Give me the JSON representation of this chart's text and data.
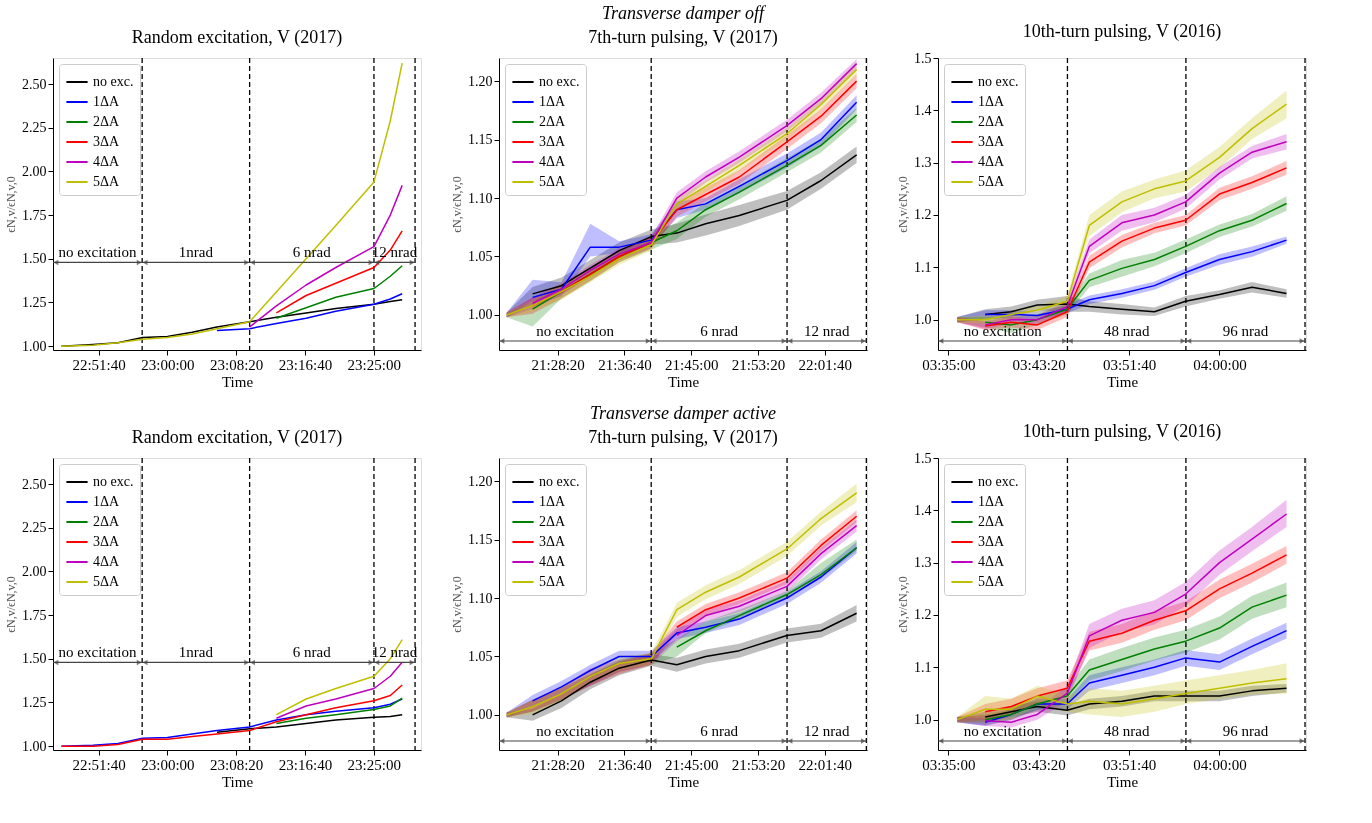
{
  "chart_data": [
    {
      "type": "line",
      "title": "Random excitation, V (2017)",
      "xlabel": "Time",
      "ylabel": "ϵN,v/ϵN,v,0",
      "legend": "top left",
      "x": [
        22.786,
        22.85,
        22.9,
        22.95,
        23.0,
        23.05,
        23.1,
        23.166,
        23.22,
        23.28,
        23.34,
        23.417,
        23.45,
        23.474
      ],
      "xlim": [
        22.769,
        23.512
      ],
      "ylim": [
        0.978,
        2.649
      ],
      "xticks": [
        {
          "value": 22.86111,
          "label": "22:51:40"
        },
        {
          "value": 23.0,
          "label": "23:00:00"
        },
        {
          "value": 23.13889,
          "label": "23:08:20"
        },
        {
          "value": 23.27778,
          "label": "23:16:40"
        },
        {
          "value": 23.41667,
          "label": "23:25:00"
        }
      ],
      "yticks": [
        {
          "value": 1.0,
          "label": "1.00"
        },
        {
          "value": 1.25,
          "label": "1.25"
        },
        {
          "value": 1.5,
          "label": "1.50"
        },
        {
          "value": 1.75,
          "label": "1.75"
        },
        {
          "value": 2.0,
          "label": "2.00"
        },
        {
          "value": 2.25,
          "label": "2.25"
        },
        {
          "value": 2.5,
          "label": "2.50"
        }
      ],
      "ref_lines": [
        {
          "axis": "x",
          "value": 22.949,
          "line_style": "dashed",
          "color": "#000000"
        },
        {
          "axis": "x",
          "value": 23.166,
          "line_style": "dashed",
          "color": "#000000"
        },
        {
          "axis": "x",
          "value": 23.417,
          "line_style": "dashed",
          "color": "#000000"
        },
        {
          "axis": "x",
          "value": 23.5,
          "line_style": "dashed",
          "color": "#000000"
        }
      ],
      "annotations": [
        "no excitation",
        "1nrad",
        "6 nrad",
        "12 nrad"
      ],
      "series": [
        {
          "name": "no exc.",
          "color": "#000000",
          "values": [
            1.0,
            1.01,
            1.02,
            1.05,
            1.055,
            1.08,
            1.11,
            1.14,
            1.165,
            1.19,
            1.215,
            1.24,
            1.255,
            1.265
          ]
        },
        {
          "name": "1ΔA",
          "color": "#0000ff",
          "values": [
            null,
            null,
            null,
            null,
            null,
            null,
            1.09,
            1.1,
            1.13,
            1.16,
            1.2,
            1.24,
            1.27,
            1.3
          ]
        },
        {
          "name": "2ΔA",
          "color": "#008000",
          "values": [
            null,
            null,
            null,
            null,
            null,
            null,
            null,
            null,
            1.16,
            1.22,
            1.28,
            1.33,
            1.4,
            1.46
          ]
        },
        {
          "name": "3ΔA",
          "color": "#ff0000",
          "values": [
            null,
            null,
            null,
            null,
            null,
            null,
            null,
            null,
            1.19,
            1.29,
            1.36,
            1.45,
            1.55,
            1.66
          ]
        },
        {
          "name": "4ΔA",
          "color": "#bf00bf",
          "values": [
            null,
            null,
            null,
            null,
            null,
            null,
            null,
            1.11,
            1.23,
            1.35,
            1.45,
            1.57,
            1.75,
            1.92
          ]
        },
        {
          "name": "5ΔA",
          "color": "#bfbf00",
          "values": [
            1.0,
            1.005,
            1.02,
            1.04,
            1.05,
            1.07,
            1.1,
            1.14,
            1.31,
            1.5,
            1.69,
            1.94,
            2.29,
            2.62
          ]
        }
      ]
    },
    {
      "type": "line",
      "title": "7th-turn pulsing, V (2017)",
      "subtitle": "Transverse damper off",
      "xlabel": "Time",
      "ylabel": "ϵN,v/ϵN,v,0",
      "legend": "top left",
      "annotations": [
        "no excitation",
        "6 nrad",
        "12 nrad"
      ],
      "x": [
        21.366,
        21.42,
        21.48,
        21.54,
        21.6,
        21.667,
        21.72,
        21.78,
        21.85,
        21.949,
        22.02,
        22.094
      ],
      "xlim": [
        21.3501,
        22.1156
      ],
      "ylim": [
        0.97,
        1.2198
      ],
      "xticks": [
        {
          "value": 21.47222,
          "label": "21:28:20"
        },
        {
          "value": 21.61111,
          "label": "21:36:40"
        },
        {
          "value": 21.75,
          "label": "21:45:00"
        },
        {
          "value": 21.88889,
          "label": "21:53:20"
        },
        {
          "value": 22.02778,
          "label": "22:01:40"
        }
      ],
      "yticks": [
        {
          "value": 1.0,
          "label": "1.00"
        },
        {
          "value": 1.05,
          "label": "1.05"
        },
        {
          "value": 1.1,
          "label": "1.10"
        },
        {
          "value": 1.15,
          "label": "1.15"
        },
        {
          "value": 1.2,
          "label": "1.20"
        }
      ],
      "ref_lines": [
        {
          "axis": "x",
          "value": 21.6667,
          "line_style": "dashed",
          "color": "#000000"
        },
        {
          "axis": "x",
          "value": 21.9493,
          "line_style": "dashed",
          "color": "#000000"
        },
        {
          "axis": "x",
          "value": 22.1142,
          "line_style": "dashed",
          "color": "#000000"
        }
      ],
      "series": [
        {
          "name": "no exc.",
          "color": "#000000",
          "values": [
            null,
            1.018,
            1.025,
            1.04,
            1.055,
            1.067,
            1.07,
            1.078,
            1.085,
            1.098,
            1.115,
            1.137
          ],
          "lower": [
            0.998,
            1.012,
            1.018,
            1.033,
            1.048,
            1.06,
            1.062,
            1.068,
            1.076,
            1.09,
            1.108,
            1.13
          ],
          "upper": [
            1.002,
            1.024,
            1.032,
            1.047,
            1.062,
            1.073,
            1.078,
            1.086,
            1.094,
            1.106,
            1.122,
            1.144
          ]
        },
        {
          "name": "1ΔA",
          "color": "#0000ff",
          "values": [
            null,
            1.015,
            1.022,
            1.058,
            1.058,
            1.064,
            1.09,
            1.095,
            1.11,
            1.132,
            1.15,
            1.182
          ],
          "lower": [
            0.998,
            1.008,
            1.016,
            1.05,
            1.053,
            1.059,
            1.083,
            1.09,
            1.104,
            1.126,
            1.144,
            1.176
          ],
          "upper": [
            1.002,
            1.03,
            1.028,
            1.078,
            1.063,
            1.069,
            1.097,
            1.1,
            1.116,
            1.138,
            1.156,
            1.188
          ]
        },
        {
          "name": "2ΔA",
          "color": "#008000",
          "values": [
            null,
            1.005,
            1.02,
            1.035,
            1.05,
            1.062,
            1.072,
            1.09,
            1.105,
            1.128,
            1.145,
            1.171
          ],
          "lower": [
            0.998,
            0.99,
            1.014,
            1.029,
            1.045,
            1.056,
            1.065,
            1.084,
            1.099,
            1.122,
            1.139,
            1.165
          ],
          "upper": [
            1.002,
            1.012,
            1.026,
            1.041,
            1.055,
            1.068,
            1.079,
            1.096,
            1.111,
            1.134,
            1.151,
            1.177
          ]
        },
        {
          "name": "3ΔA",
          "color": "#ff0000",
          "values": [
            null,
            1.008,
            1.02,
            1.035,
            1.05,
            1.062,
            1.09,
            1.103,
            1.118,
            1.148,
            1.17,
            1.2
          ],
          "lower": [
            0.998,
            1.001,
            1.014,
            1.029,
            1.045,
            1.057,
            1.084,
            1.097,
            1.112,
            1.142,
            1.164,
            1.194
          ],
          "upper": [
            1.002,
            1.015,
            1.026,
            1.041,
            1.055,
            1.067,
            1.096,
            1.109,
            1.124,
            1.154,
            1.176,
            1.206
          ]
        },
        {
          "name": "4ΔA",
          "color": "#bf00bf",
          "values": [
            null,
            1.01,
            1.022,
            1.038,
            1.052,
            1.062,
            1.1,
            1.118,
            1.135,
            1.162,
            1.185,
            1.215
          ],
          "lower": [
            0.998,
            1.005,
            1.017,
            1.033,
            1.047,
            1.057,
            1.095,
            1.113,
            1.13,
            1.157,
            1.18,
            1.21
          ],
          "upper": [
            1.002,
            1.015,
            1.027,
            1.043,
            1.057,
            1.067,
            1.105,
            1.123,
            1.14,
            1.167,
            1.19,
            1.219
          ]
        },
        {
          "name": "5ΔA",
          "color": "#bfbf00",
          "values": [
            1.0,
            1.008,
            1.02,
            1.033,
            1.048,
            1.06,
            1.095,
            1.11,
            1.128,
            1.155,
            1.18,
            1.21
          ],
          "lower": [
            0.998,
            1.003,
            1.013,
            1.028,
            1.043,
            1.055,
            1.09,
            1.105,
            1.123,
            1.15,
            1.175,
            1.205
          ],
          "upper": [
            1.002,
            1.013,
            1.027,
            1.038,
            1.053,
            1.065,
            1.1,
            1.115,
            1.133,
            1.16,
            1.185,
            1.215
          ]
        }
      ]
    },
    {
      "type": "line",
      "title": "10th-turn pulsing, V (2016)",
      "xlabel": "Time",
      "ylabel": "ϵN,v/ϵN,v,0",
      "legend": "top left",
      "x": [
        3.597,
        3.64,
        3.68,
        3.72,
        3.766,
        3.8,
        3.85,
        3.9,
        3.948,
        4.0,
        4.05,
        4.103
      ],
      "xlim": [
        3.5675,
        4.1329
      ],
      "ylim": [
        0.942,
        1.5
      ],
      "xticks": [
        {
          "value": 3.58333,
          "label": "03:35:00"
        },
        {
          "value": 3.72222,
          "label": "03:43:20"
        },
        {
          "value": 3.86111,
          "label": "03:51:40"
        },
        {
          "value": 4.0,
          "label": "04:00:00"
        }
      ],
      "yticks": [
        {
          "value": 1.0,
          "label": "1.0"
        },
        {
          "value": 1.1,
          "label": "1.1"
        },
        {
          "value": 1.2,
          "label": "1.2"
        },
        {
          "value": 1.3,
          "label": "1.3"
        },
        {
          "value": 1.4,
          "label": "1.4"
        },
        {
          "value": 1.5,
          "label": "1.5"
        }
      ],
      "ref_lines": [
        {
          "axis": "x",
          "value": 3.7664,
          "line_style": "dashed",
          "color": "#000000"
        },
        {
          "axis": "x",
          "value": 3.9484,
          "line_style": "dashed",
          "color": "#000000"
        },
        {
          "axis": "x",
          "value": 4.1314,
          "line_style": "dashed",
          "color": "#000000"
        }
      ],
      "annotations": [
        "no excitation",
        "48 nrad",
        "96 nrad"
      ],
      "series": [
        {
          "name": "no exc.",
          "color": "#000000",
          "values": [
            null,
            1.01,
            1.015,
            1.028,
            1.03,
            1.025,
            1.02,
            1.015,
            1.035,
            1.048,
            1.062,
            1.05
          ],
          "lower": [
            0.995,
            1.0,
            1.005,
            1.018,
            1.015,
            1.015,
            1.01,
            1.007,
            1.025,
            1.04,
            1.052,
            1.042
          ],
          "upper": [
            1.005,
            1.02,
            1.025,
            1.038,
            1.045,
            1.035,
            1.03,
            1.023,
            1.045,
            1.056,
            1.072,
            1.058
          ]
        },
        {
          "name": "1ΔA",
          "color": "#0000ff",
          "values": [
            null,
            1.01,
            1.01,
            1.008,
            1.02,
            1.038,
            1.05,
            1.065,
            1.09,
            1.115,
            1.13,
            1.152
          ],
          "lower": [
            0.995,
            1.002,
            1.002,
            1.0,
            1.012,
            1.03,
            1.042,
            1.057,
            1.082,
            1.105,
            1.12,
            1.145
          ],
          "upper": [
            1.005,
            1.018,
            1.018,
            1.016,
            1.028,
            1.046,
            1.058,
            1.073,
            1.098,
            1.125,
            1.14,
            1.159
          ]
        },
        {
          "name": "2ΔA",
          "color": "#008000",
          "values": [
            null,
            0.995,
            0.99,
            1.0,
            1.02,
            1.075,
            1.098,
            1.115,
            1.14,
            1.17,
            1.19,
            1.222
          ],
          "lower": [
            0.995,
            0.985,
            0.975,
            0.99,
            1.01,
            1.062,
            1.082,
            1.102,
            1.127,
            1.158,
            1.178,
            1.208
          ],
          "upper": [
            1.005,
            1.005,
            1.005,
            1.01,
            1.03,
            1.088,
            1.114,
            1.128,
            1.153,
            1.182,
            1.202,
            1.236
          ]
        },
        {
          "name": "3ΔA",
          "color": "#ff0000",
          "values": [
            null,
            0.988,
            0.995,
            0.99,
            1.015,
            1.11,
            1.15,
            1.175,
            1.19,
            1.24,
            1.262,
            1.29
          ],
          "lower": [
            0.995,
            0.98,
            0.985,
            0.98,
            1.005,
            1.098,
            1.138,
            1.165,
            1.18,
            1.228,
            1.25,
            1.277
          ],
          "upper": [
            1.005,
            0.996,
            1.005,
            1.0,
            1.025,
            1.122,
            1.162,
            1.185,
            1.2,
            1.252,
            1.274,
            1.303
          ]
        },
        {
          "name": "4ΔA",
          "color": "#bf00bf",
          "values": [
            null,
            0.99,
            1.0,
            1.0,
            1.025,
            1.14,
            1.185,
            1.2,
            1.225,
            1.28,
            1.32,
            1.34
          ],
          "lower": [
            0.995,
            0.982,
            0.992,
            0.992,
            1.015,
            1.127,
            1.17,
            1.186,
            1.212,
            1.268,
            1.308,
            1.325
          ],
          "upper": [
            1.005,
            0.998,
            1.008,
            1.008,
            1.035,
            1.153,
            1.2,
            1.214,
            1.238,
            1.292,
            1.332,
            1.355
          ]
        },
        {
          "name": "5ΔA",
          "color": "#bfbf00",
          "values": [
            1.0,
            1.0,
            1.01,
            1.018,
            1.035,
            1.18,
            1.225,
            1.25,
            1.265,
            1.31,
            1.365,
            1.412
          ],
          "lower": [
            0.995,
            0.992,
            1.002,
            1.01,
            1.025,
            1.16,
            1.205,
            1.232,
            1.245,
            1.29,
            1.345,
            1.385
          ],
          "upper": [
            1.005,
            1.008,
            1.018,
            1.026,
            1.045,
            1.2,
            1.245,
            1.268,
            1.285,
            1.33,
            1.385,
            1.438
          ]
        }
      ]
    },
    {
      "type": "line",
      "title": "Random excitation, V (2017)",
      "xlabel": "Time",
      "ylabel": "ϵN,v/ϵN,v,0",
      "legend": "top left",
      "x": [
        22.786,
        22.85,
        22.9,
        22.95,
        23.0,
        23.05,
        23.1,
        23.166,
        23.22,
        23.28,
        23.34,
        23.417,
        23.45,
        23.474
      ],
      "xlim": [
        22.769,
        23.512
      ],
      "ylim": [
        0.978,
        2.649
      ],
      "xticks": [
        {
          "value": 22.86111,
          "label": "22:51:40"
        },
        {
          "value": 23.0,
          "label": "23:00:00"
        },
        {
          "value": 23.13889,
          "label": "23:08:20"
        },
        {
          "value": 23.27778,
          "label": "23:16:40"
        },
        {
          "value": 23.41667,
          "label": "23:25:00"
        }
      ],
      "yticks": [
        {
          "value": 1.0,
          "label": "1.00"
        },
        {
          "value": 1.25,
          "label": "1.25"
        },
        {
          "value": 1.5,
          "label": "1.50"
        },
        {
          "value": 1.75,
          "label": "1.75"
        },
        {
          "value": 2.0,
          "label": "2.00"
        },
        {
          "value": 2.25,
          "label": "2.25"
        },
        {
          "value": 2.5,
          "label": "2.50"
        }
      ],
      "ref_lines": [
        {
          "axis": "x",
          "value": 22.949,
          "line_style": "dashed",
          "color": "#000000"
        },
        {
          "axis": "x",
          "value": 23.166,
          "line_style": "dashed",
          "color": "#000000"
        },
        {
          "axis": "x",
          "value": 23.417,
          "line_style": "dashed",
          "color": "#000000"
        },
        {
          "axis": "x",
          "value": 23.5,
          "line_style": "dashed",
          "color": "#000000"
        }
      ],
      "annotations": [
        "no excitation",
        "1nrad",
        "6 nrad",
        "12 nrad"
      ],
      "series": [
        {
          "name": "no exc.",
          "color": "#000000",
          "values": [
            null,
            null,
            null,
            null,
            null,
            null,
            1.08,
            1.1,
            1.11,
            1.13,
            1.15,
            1.165,
            1.17,
            1.18
          ]
        },
        {
          "name": "1ΔA",
          "color": "#0000ff",
          "values": [
            1.0,
            1.005,
            1.015,
            1.045,
            1.05,
            1.07,
            1.09,
            1.11,
            1.15,
            1.18,
            1.2,
            1.22,
            1.24,
            1.27
          ]
        },
        {
          "name": "2ΔA",
          "color": "#008000",
          "values": [
            null,
            null,
            null,
            null,
            null,
            null,
            null,
            null,
            1.13,
            1.16,
            1.18,
            1.21,
            1.23,
            1.275
          ]
        },
        {
          "name": "3ΔA",
          "color": "#ff0000",
          "values": [
            1.0,
            1.0,
            1.01,
            1.04,
            1.04,
            1.055,
            1.07,
            1.09,
            1.14,
            1.18,
            1.22,
            1.26,
            1.29,
            1.35
          ]
        },
        {
          "name": "4ΔA",
          "color": "#bf00bf",
          "values": [
            null,
            null,
            null,
            null,
            null,
            null,
            null,
            null,
            1.16,
            1.23,
            1.27,
            1.33,
            1.4,
            1.48
          ]
        },
        {
          "name": "5ΔA",
          "color": "#bfbf00",
          "values": [
            null,
            null,
            null,
            null,
            null,
            null,
            null,
            null,
            1.18,
            1.27,
            1.33,
            1.4,
            1.5,
            1.61
          ]
        }
      ]
    },
    {
      "type": "line",
      "title": "7th-turn pulsing, V (2017)",
      "subtitle": "Transverse damper active",
      "xlabel": "Time",
      "ylabel": "ϵN,v/ϵN,v,0",
      "legend": "top left",
      "annotations": [
        "no excitation",
        "6 nrad",
        "12 nrad"
      ],
      "x": [
        21.366,
        21.42,
        21.48,
        21.54,
        21.6,
        21.667,
        21.72,
        21.78,
        21.85,
        21.949,
        22.02,
        22.094
      ],
      "xlim": [
        21.3501,
        22.1156
      ],
      "ylim": [
        0.97,
        1.2198
      ],
      "xticks": [
        {
          "value": 21.47222,
          "label": "21:28:20"
        },
        {
          "value": 21.61111,
          "label": "21:36:40"
        },
        {
          "value": 21.75,
          "label": "21:45:00"
        },
        {
          "value": 21.88889,
          "label": "21:53:20"
        },
        {
          "value": 22.02778,
          "label": "22:01:40"
        }
      ],
      "yticks": [
        {
          "value": 1.0,
          "label": "1.00"
        },
        {
          "value": 1.05,
          "label": "1.05"
        },
        {
          "value": 1.1,
          "label": "1.10"
        },
        {
          "value": 1.15,
          "label": "1.15"
        },
        {
          "value": 1.2,
          "label": "1.20"
        }
      ],
      "ref_lines": [
        {
          "axis": "x",
          "value": 21.6667,
          "line_style": "dashed",
          "color": "#000000"
        },
        {
          "axis": "x",
          "value": 21.9493,
          "line_style": "dashed",
          "color": "#000000"
        },
        {
          "axis": "x",
          "value": 22.1142,
          "line_style": "dashed",
          "color": "#000000"
        }
      ],
      "series": [
        {
          "name": "no exc.",
          "color": "#000000",
          "values": [
            null,
            1.0,
            1.012,
            1.028,
            1.04,
            1.047,
            1.043,
            1.05,
            1.055,
            1.068,
            1.072,
            1.087
          ],
          "lower": [
            0.998,
            0.995,
            1.006,
            1.022,
            1.034,
            1.042,
            1.037,
            1.044,
            1.049,
            1.062,
            1.066,
            1.08
          ],
          "upper": [
            1.002,
            1.005,
            1.018,
            1.034,
            1.046,
            1.052,
            1.049,
            1.056,
            1.061,
            1.074,
            1.078,
            1.094
          ]
        },
        {
          "name": "1ΔA",
          "color": "#0000ff",
          "values": [
            null,
            1.012,
            1.024,
            1.038,
            1.05,
            1.05,
            1.07,
            1.075,
            1.082,
            1.1,
            1.118,
            1.143
          ],
          "lower": [
            0.998,
            1.007,
            1.019,
            1.033,
            1.045,
            1.045,
            1.065,
            1.07,
            1.077,
            1.095,
            1.113,
            1.138
          ],
          "upper": [
            1.002,
            1.017,
            1.029,
            1.043,
            1.055,
            1.055,
            1.075,
            1.08,
            1.087,
            1.105,
            1.123,
            1.148
          ]
        },
        {
          "name": "2ΔA",
          "color": "#008000",
          "values": [
            null,
            null,
            null,
            null,
            null,
            null,
            1.058,
            1.072,
            1.085,
            1.103,
            1.12,
            1.143
          ],
          "lower": [
            0.998,
            1.003,
            1.013,
            1.025,
            1.037,
            1.043,
            1.05,
            1.07,
            1.082,
            1.1,
            1.117,
            1.14
          ],
          "upper": [
            1.002,
            1.013,
            1.023,
            1.035,
            1.047,
            1.053,
            1.065,
            1.08,
            1.09,
            1.106,
            1.13,
            1.15
          ]
        },
        {
          "name": "3ΔA",
          "color": "#ff0000",
          "values": [
            null,
            null,
            null,
            null,
            null,
            null,
            1.075,
            1.09,
            1.1,
            1.117,
            1.145,
            1.17
          ],
          "lower": [
            0.998,
            1.003,
            1.013,
            1.025,
            1.035,
            1.043,
            1.07,
            1.085,
            1.095,
            1.112,
            1.14,
            1.165
          ],
          "upper": [
            1.002,
            1.013,
            1.023,
            1.035,
            1.045,
            1.053,
            1.08,
            1.095,
            1.105,
            1.122,
            1.15,
            1.175
          ]
        },
        {
          "name": "4ΔA",
          "color": "#bf00bf",
          "values": [
            null,
            null,
            null,
            null,
            null,
            null,
            1.068,
            1.085,
            1.093,
            1.11,
            1.138,
            1.162
          ],
          "lower": [
            0.998,
            1.003,
            1.013,
            1.025,
            1.037,
            1.043,
            1.063,
            1.08,
            1.088,
            1.105,
            1.133,
            1.157
          ],
          "upper": [
            1.002,
            1.013,
            1.024,
            1.04,
            1.047,
            1.053,
            1.073,
            1.09,
            1.098,
            1.115,
            1.143,
            1.167
          ]
        },
        {
          "name": "5ΔA",
          "color": "#bfbf00",
          "values": [
            1.0,
            1.007,
            1.018,
            1.033,
            1.044,
            1.048,
            1.09,
            1.105,
            1.118,
            1.142,
            1.168,
            1.19
          ],
          "lower": [
            0.998,
            1.001,
            1.012,
            1.027,
            1.038,
            1.043,
            1.084,
            1.099,
            1.112,
            1.136,
            1.162,
            1.182
          ],
          "upper": [
            1.002,
            1.013,
            1.024,
            1.039,
            1.05,
            1.053,
            1.096,
            1.111,
            1.124,
            1.148,
            1.174,
            1.198
          ]
        }
      ]
    },
    {
      "type": "line",
      "title": "10th-turn pulsing, V (2016)",
      "xlabel": "Time",
      "ylabel": "ϵN,v/ϵN,v,0",
      "legend": "top left",
      "x": [
        3.597,
        3.64,
        3.68,
        3.72,
        3.766,
        3.8,
        3.85,
        3.9,
        3.948,
        4.0,
        4.05,
        4.103
      ],
      "xlim": [
        3.5675,
        4.1329
      ],
      "ylim": [
        0.942,
        1.5
      ],
      "xticks": [
        {
          "value": 3.58333,
          "label": "03:35:00"
        },
        {
          "value": 3.72222,
          "label": "03:43:20"
        },
        {
          "value": 3.86111,
          "label": "03:51:40"
        },
        {
          "value": 4.0,
          "label": "04:00:00"
        }
      ],
      "yticks": [
        {
          "value": 1.0,
          "label": "1.0"
        },
        {
          "value": 1.1,
          "label": "1.1"
        },
        {
          "value": 1.2,
          "label": "1.2"
        },
        {
          "value": 1.3,
          "label": "1.3"
        },
        {
          "value": 1.4,
          "label": "1.4"
        },
        {
          "value": 1.5,
          "label": "1.5"
        }
      ],
      "ref_lines": [
        {
          "axis": "x",
          "value": 3.7664,
          "line_style": "dashed",
          "color": "#000000"
        },
        {
          "axis": "x",
          "value": 3.9484,
          "line_style": "dashed",
          "color": "#000000"
        },
        {
          "axis": "x",
          "value": 4.1314,
          "line_style": "dashed",
          "color": "#000000"
        }
      ],
      "annotations": [
        "no excitation",
        "48 nrad",
        "96 nrad"
      ],
      "series": [
        {
          "name": "no exc.",
          "color": "#000000",
          "values": [
            null,
            1.005,
            1.015,
            1.025,
            1.018,
            1.03,
            1.035,
            1.045,
            1.045,
            1.045,
            1.055,
            1.06
          ],
          "lower": [
            0.995,
            0.995,
            1.005,
            1.015,
            1.008,
            1.02,
            1.025,
            1.035,
            1.035,
            1.035,
            1.045,
            1.052
          ],
          "upper": [
            1.005,
            1.015,
            1.025,
            1.035,
            1.028,
            1.04,
            1.045,
            1.055,
            1.055,
            1.055,
            1.065,
            1.068
          ]
        },
        {
          "name": "1ΔA",
          "color": "#0000ff",
          "values": [
            null,
            0.995,
            1.01,
            1.03,
            1.03,
            1.07,
            1.085,
            1.1,
            1.118,
            1.11,
            1.14,
            1.17
          ],
          "lower": [
            0.995,
            0.988,
            1.0,
            1.02,
            1.02,
            1.055,
            1.07,
            1.085,
            1.103,
            1.095,
            1.125,
            1.155
          ],
          "upper": [
            1.005,
            1.002,
            1.02,
            1.04,
            1.04,
            1.085,
            1.1,
            1.115,
            1.133,
            1.125,
            1.155,
            1.185
          ]
        },
        {
          "name": "2ΔA",
          "color": "#008000",
          "values": [
            null,
            1.0,
            1.01,
            1.03,
            1.045,
            1.095,
            1.115,
            1.135,
            1.15,
            1.175,
            1.215,
            1.238
          ],
          "lower": [
            0.995,
            0.99,
            1.0,
            1.018,
            1.03,
            1.075,
            1.093,
            1.113,
            1.128,
            1.153,
            1.193,
            1.215
          ],
          "upper": [
            1.005,
            1.01,
            1.02,
            1.042,
            1.06,
            1.115,
            1.137,
            1.157,
            1.172,
            1.197,
            1.237,
            1.262
          ]
        },
        {
          "name": "3ΔA",
          "color": "#ff0000",
          "values": [
            null,
            1.015,
            1.025,
            1.045,
            1.06,
            1.15,
            1.165,
            1.19,
            1.208,
            1.25,
            1.28,
            1.315
          ],
          "lower": [
            0.995,
            1.0,
            1.01,
            1.03,
            1.045,
            1.132,
            1.147,
            1.172,
            1.19,
            1.232,
            1.262,
            1.298
          ],
          "upper": [
            1.005,
            1.03,
            1.04,
            1.06,
            1.075,
            1.168,
            1.183,
            1.208,
            1.226,
            1.268,
            1.298,
            1.332
          ]
        },
        {
          "name": "4ΔA",
          "color": "#bf00bf",
          "values": [
            null,
            0.998,
            0.995,
            1.01,
            1.05,
            1.16,
            1.19,
            1.205,
            1.24,
            1.3,
            1.345,
            1.393
          ],
          "lower": [
            0.995,
            0.988,
            0.985,
            1.0,
            1.035,
            1.137,
            1.168,
            1.182,
            1.217,
            1.277,
            1.322,
            1.368
          ],
          "upper": [
            1.005,
            1.008,
            1.005,
            1.02,
            1.065,
            1.183,
            1.212,
            1.228,
            1.263,
            1.323,
            1.368,
            1.42
          ]
        },
        {
          "name": "5ΔA",
          "color": "#bfbf00",
          "values": [
            1.0,
            1.02,
            1.02,
            1.045,
            1.03,
            1.035,
            1.03,
            1.04,
            1.05,
            1.06,
            1.07,
            1.078
          ],
          "lower": [
            0.995,
            0.995,
            1.0,
            1.025,
            1.015,
            1.01,
            1.005,
            1.015,
            1.03,
            1.04,
            1.048,
            1.05
          ],
          "upper": [
            1.005,
            1.045,
            1.04,
            1.065,
            1.045,
            1.06,
            1.055,
            1.065,
            1.075,
            1.085,
            1.095,
            1.108
          ]
        }
      ]
    }
  ]
}
